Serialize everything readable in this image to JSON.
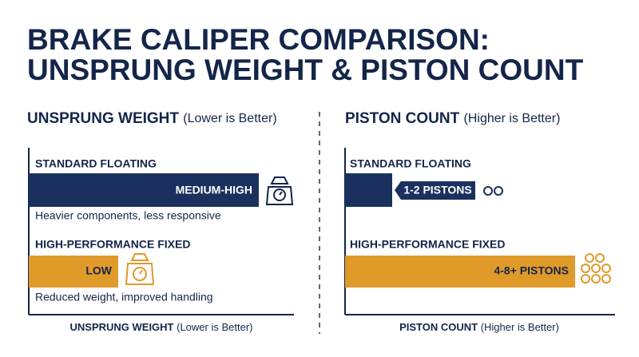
{
  "header": {
    "title_line1": "BRAKE CALIPER COMPARISON:",
    "title_line2": "UNSPRUNG WEIGHT & PISTON COUNT"
  },
  "panels": [
    {
      "heading": "UNSPRUNG WEIGHT",
      "heading_note": "(Lower is Better)",
      "items": [
        {
          "name": "STANDARD FLOATING",
          "bar_label": "MEDIUM-HIGH",
          "description": "Heavier components, less responsive"
        },
        {
          "name": "HIGH-PERFORMANCE FIXED",
          "bar_label": "LOW",
          "description": "Reduced weight, improved handling"
        }
      ],
      "axis_label": "UNSPRUNG WEIGHT",
      "axis_note": "(Lower is Better)"
    },
    {
      "heading": "PISTON COUNT",
      "heading_note": "(Higher is Better)",
      "items": [
        {
          "name": "STANDARD FLOATING",
          "bar_label": "1-2 PISTONS"
        },
        {
          "name": "HIGH-PERFORMANCE FIXED",
          "bar_label": "4-8+ PISTONS"
        }
      ],
      "axis_label": "PISTON COUNT",
      "axis_note": "(Higher is Better)"
    }
  ]
}
